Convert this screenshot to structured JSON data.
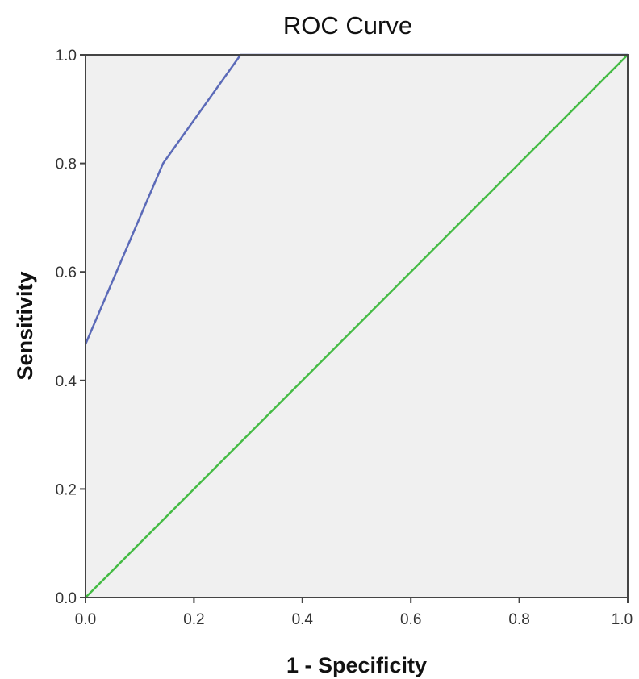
{
  "chart_data": {
    "type": "line",
    "title": "ROC Curve",
    "xlabel": "1 - Specificity",
    "ylabel": "Sensitivity",
    "xlim": [
      0,
      1
    ],
    "ylim": [
      0,
      1
    ],
    "x_ticks": [
      "0.0",
      "0.2",
      "0.4",
      "0.6",
      "0.8",
      "1.0"
    ],
    "y_ticks": [
      "0.0",
      "0.2",
      "0.4",
      "0.6",
      "0.8",
      "1.0"
    ],
    "grid": false,
    "legend": "none",
    "plot_background": "#f0f0f0",
    "series": [
      {
        "color": "#5b6ab8",
        "x": [
          0.0,
          0.143,
          0.286,
          1.0
        ],
        "y": [
          0.467,
          0.8,
          1.0,
          1.0
        ]
      },
      {
        "color": "#44bb44",
        "x": [
          0.0,
          1.0
        ],
        "y": [
          0.0,
          1.0
        ]
      }
    ]
  }
}
